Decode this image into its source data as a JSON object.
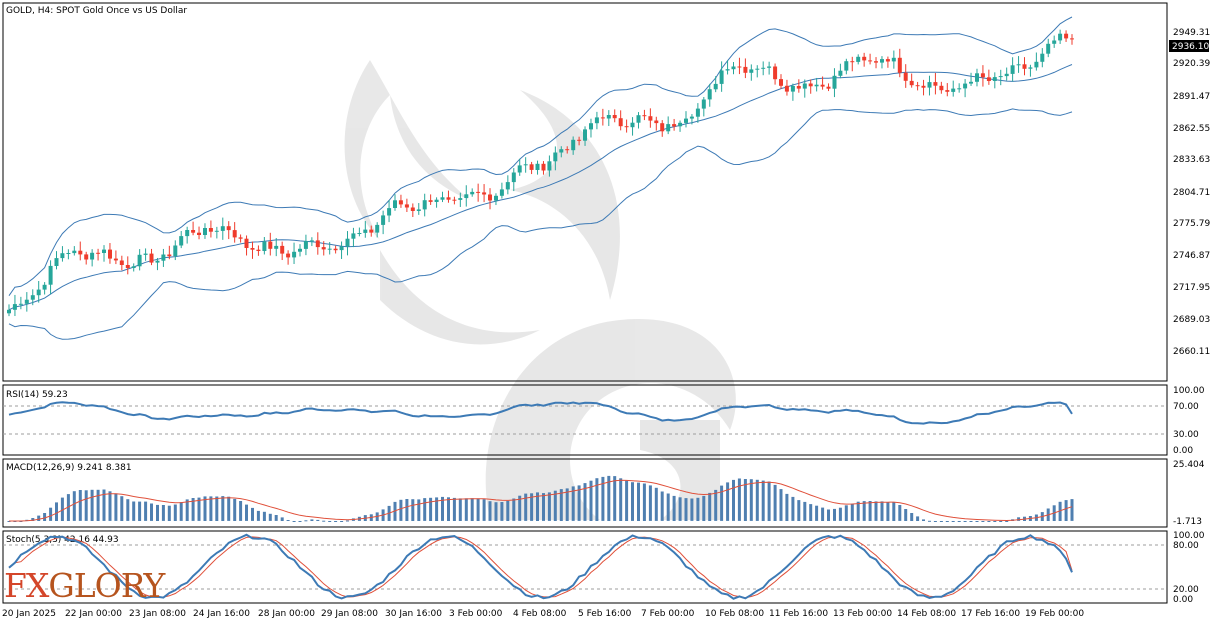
{
  "header": {
    "title": "GOLD, H4:  SPOT Gold Once vs US Dollar"
  },
  "price_axis": {
    "ticks": [
      "2949.31",
      "2920.39",
      "2891.47",
      "2862.55",
      "2833.63",
      "2804.71",
      "2775.79",
      "2746.87",
      "2717.95",
      "2689.03",
      "2660.11"
    ],
    "current_price": "2936.10"
  },
  "rsi_panel": {
    "title": "RSI(14) 59.23",
    "levels": [
      "100.00",
      "70.00",
      "30.00",
      "0.00"
    ]
  },
  "macd_panel": {
    "title": "MACD(12,26,9) 9.241 8.381",
    "levels": [
      "25.404",
      "-1.713"
    ]
  },
  "stoch_panel": {
    "title": "Stoch(5,3,3) 42.16 44.93",
    "levels": [
      "100.00",
      "80.00",
      "20.00",
      "0.00"
    ]
  },
  "time_axis": {
    "labels": [
      "20 Jan 2025",
      "22 Jan 00:00",
      "23 Jan 08:00",
      "24 Jan 16:00",
      "28 Jan 00:00",
      "29 Jan 08:00",
      "30 Jan 16:00",
      "3 Feb 00:00",
      "4 Feb 08:00",
      "5 Feb 16:00",
      "7 Feb 00:00",
      "10 Feb 08:00",
      "11 Feb 16:00",
      "13 Feb 00:00",
      "14 Feb 08:00",
      "17 Feb 16:00",
      "19 Feb 00:00"
    ]
  },
  "brand": {
    "logo_part1": "FX",
    "logo_part2": "GLORY"
  },
  "colors": {
    "bull": "#26a69a",
    "bear": "#ef3b2c",
    "line": "#3d7ab5",
    "signal": "#e0503a",
    "macd_bar": "#4f7fb0"
  },
  "chart_data": [
    {
      "type": "candlestick",
      "title": "GOLD, H4:  SPOT Gold Once vs US Dollar",
      "ylim": [
        2645,
        2965
      ],
      "anchors": [
        {
          "x": "20 Jan 2025",
          "close": 2705
        },
        {
          "x": "22 Jan 00:00",
          "close": 2755
        },
        {
          "x": "23 Jan 08:00",
          "close": 2745
        },
        {
          "x": "24 Jan 16:00",
          "close": 2775
        },
        {
          "x": "28 Jan 00:00",
          "close": 2755
        },
        {
          "x": "29 Jan 08:00",
          "close": 2762
        },
        {
          "x": "30 Jan 16:00",
          "close": 2795
        },
        {
          "x": "3 Feb 00:00",
          "close": 2800
        },
        {
          "x": "4 Feb 08:00",
          "close": 2830
        },
        {
          "x": "5 Feb 16:00",
          "close": 2868
        },
        {
          "x": "7 Feb 00:00",
          "close": 2863
        },
        {
          "x": "10 Feb 08:00",
          "close": 2915
        },
        {
          "x": "11 Feb 16:00",
          "close": 2895
        },
        {
          "x": "13 Feb 00:00",
          "close": 2920
        },
        {
          "x": "14 Feb 08:00",
          "close": 2893
        },
        {
          "x": "17 Feb 16:00",
          "close": 2905
        },
        {
          "x": "19 Feb 00:00",
          "close": 2936
        }
      ],
      "bollinger": {
        "upper_end": 2950,
        "middle_end": 2920,
        "lower_end": 2878
      }
    },
    {
      "type": "line",
      "title": "RSI(14) 59.23",
      "ylim": [
        0,
        100
      ],
      "levels": [
        70,
        30
      ],
      "last": 59.23
    },
    {
      "type": "bar",
      "title": "MACD(12,26,9) 9.241 8.381",
      "ylim": [
        -1.713,
        25.404
      ],
      "macd": 9.241,
      "signal": 8.381
    },
    {
      "type": "line",
      "title": "Stoch(5,3,3) 42.16 44.93",
      "ylim": [
        0,
        100
      ],
      "levels": [
        80,
        20
      ],
      "k": 42.16,
      "d": 44.93
    }
  ]
}
